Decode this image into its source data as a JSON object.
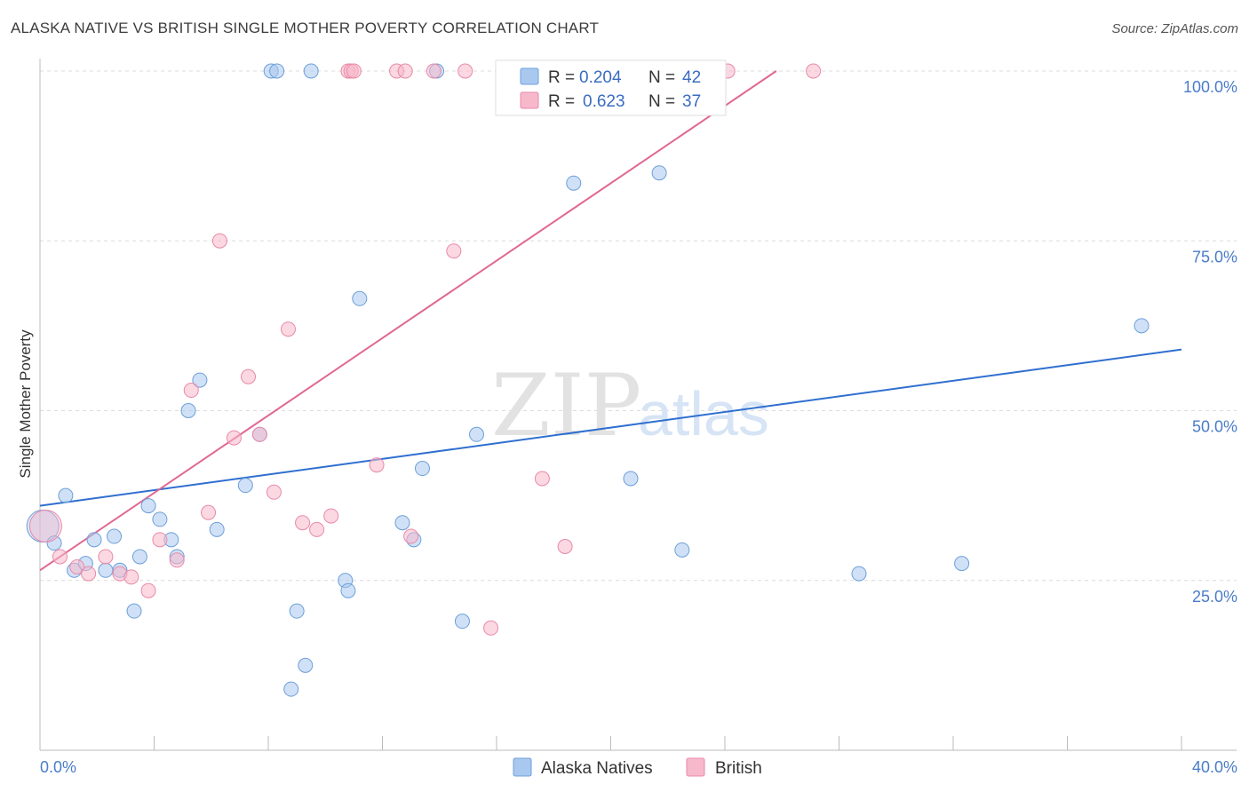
{
  "header": {
    "title": "ALASKA NATIVE VS BRITISH SINGLE MOTHER POVERTY CORRELATION CHART",
    "source": "Source: ZipAtlas.com"
  },
  "watermark": {
    "zip": "ZIP",
    "atlas": "atlas"
  },
  "legend_box": {
    "rows": [
      {
        "r_label": "R =",
        "r_value": "0.204",
        "n_label": "N =",
        "n_value": "42",
        "color": "#a9c8f0"
      },
      {
        "r_label": "R =",
        "r_value": "0.623",
        "n_label": "N =",
        "n_value": "37",
        "color": "#f7b8cb"
      }
    ]
  },
  "bottom_legend": {
    "items": [
      {
        "label": "Alaska Natives",
        "color": "#a9c8f0"
      },
      {
        "label": "British",
        "color": "#f7b8cb"
      }
    ]
  },
  "chart_data": {
    "type": "scatter",
    "title": "ALASKA NATIVE VS BRITISH SINGLE MOTHER POVERTY CORRELATION CHART",
    "xlabel": "",
    "ylabel": "Single Mother Poverty",
    "xlim": [
      0,
      40
    ],
    "ylim": [
      0,
      100
    ],
    "x_tick_labels": [
      "0.0%",
      "40.0%"
    ],
    "y_tick_labels": [
      "25.0%",
      "50.0%",
      "75.0%",
      "100.0%"
    ],
    "y_ticks": [
      25,
      50,
      75,
      100
    ],
    "grid": true,
    "legend_position": "top-center",
    "series": [
      {
        "name": "Alaska Natives",
        "color": "#a9c8f0",
        "stroke": "#6d9fd8",
        "trend": {
          "x": [
            0,
            40
          ],
          "y": [
            36.0,
            59.0
          ],
          "color": "#2f6fd0"
        },
        "points": [
          [
            0.1,
            33.0
          ],
          [
            0.5,
            30.5
          ],
          [
            0.9,
            37.5
          ],
          [
            1.2,
            26.5
          ],
          [
            1.6,
            27.5
          ],
          [
            1.9,
            31.0
          ],
          [
            2.3,
            26.5
          ],
          [
            2.6,
            31.5
          ],
          [
            2.8,
            26.5
          ],
          [
            3.3,
            20.5
          ],
          [
            3.5,
            28.5
          ],
          [
            3.8,
            36.0
          ],
          [
            4.2,
            34.0
          ],
          [
            4.6,
            31.0
          ],
          [
            4.8,
            28.5
          ],
          [
            5.2,
            50.0
          ],
          [
            5.6,
            54.5
          ],
          [
            6.2,
            32.5
          ],
          [
            7.2,
            39.0
          ],
          [
            7.7,
            46.5
          ],
          [
            8.1,
            100.0
          ],
          [
            8.3,
            100.0
          ],
          [
            8.8,
            9.0
          ],
          [
            9.0,
            20.5
          ],
          [
            9.3,
            12.5
          ],
          [
            9.5,
            100.0
          ],
          [
            10.7,
            25.0
          ],
          [
            10.8,
            23.5
          ],
          [
            11.2,
            66.5
          ],
          [
            12.7,
            33.5
          ],
          [
            13.1,
            31.0
          ],
          [
            13.4,
            41.5
          ],
          [
            13.9,
            100.0
          ],
          [
            14.8,
            19.0
          ],
          [
            15.3,
            46.5
          ],
          [
            18.7,
            83.5
          ],
          [
            20.7,
            40.0
          ],
          [
            21.7,
            85.0
          ],
          [
            22.5,
            29.5
          ],
          [
            28.7,
            26.0
          ],
          [
            32.3,
            27.5
          ],
          [
            38.6,
            62.5
          ]
        ]
      },
      {
        "name": "British",
        "color": "#f7b8cb",
        "stroke": "#e88aa8",
        "trend": {
          "x": [
            0,
            25.8
          ],
          "y": [
            26.5,
            100.0
          ],
          "color": "#e06892"
        },
        "points": [
          [
            0.2,
            33.0
          ],
          [
            0.7,
            28.5
          ],
          [
            1.3,
            27.0
          ],
          [
            1.7,
            26.0
          ],
          [
            2.3,
            28.5
          ],
          [
            2.8,
            26.0
          ],
          [
            3.2,
            25.5
          ],
          [
            3.8,
            23.5
          ],
          [
            4.2,
            31.0
          ],
          [
            4.8,
            28.0
          ],
          [
            5.3,
            53.0
          ],
          [
            5.9,
            35.0
          ],
          [
            6.3,
            75.0
          ],
          [
            6.8,
            46.0
          ],
          [
            7.3,
            55.0
          ],
          [
            7.7,
            46.5
          ],
          [
            8.2,
            38.0
          ],
          [
            8.7,
            62.0
          ],
          [
            9.2,
            33.5
          ],
          [
            9.7,
            32.5
          ],
          [
            10.2,
            34.5
          ],
          [
            10.8,
            100.0
          ],
          [
            10.9,
            100.0
          ],
          [
            11.0,
            100.0
          ],
          [
            11.8,
            42.0
          ],
          [
            12.5,
            100.0
          ],
          [
            12.8,
            100.0
          ],
          [
            13.0,
            31.5
          ],
          [
            13.8,
            100.0
          ],
          [
            14.5,
            73.5
          ],
          [
            14.9,
            100.0
          ],
          [
            15.8,
            18.0
          ],
          [
            17.6,
            40.0
          ],
          [
            18.4,
            30.0
          ],
          [
            22.1,
            100.0
          ],
          [
            24.1,
            100.0
          ],
          [
            27.1,
            100.0
          ]
        ]
      }
    ]
  }
}
